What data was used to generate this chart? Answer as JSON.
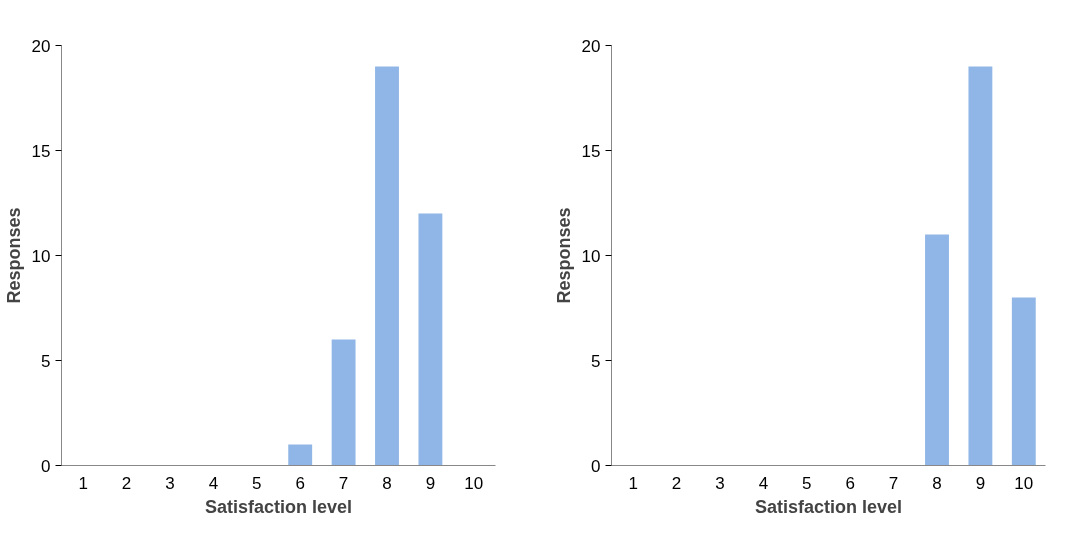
{
  "chart_data": [
    {
      "type": "bar",
      "xlabel": "Satisfaction level",
      "ylabel": "Responses",
      "categories": [
        "1",
        "2",
        "3",
        "4",
        "5",
        "6",
        "7",
        "8",
        "9",
        "10"
      ],
      "values": [
        0,
        0,
        0,
        0,
        0,
        1,
        6,
        19,
        12,
        0
      ],
      "color": "#8fb6e6",
      "ylim": [
        0,
        20
      ],
      "yticks": [
        0,
        5,
        10,
        15,
        20
      ],
      "grid": false
    },
    {
      "type": "bar",
      "xlabel": "Satisfaction level",
      "ylabel": "Responses",
      "categories": [
        "1",
        "2",
        "3",
        "4",
        "5",
        "6",
        "7",
        "8",
        "9",
        "10"
      ],
      "values": [
        0,
        0,
        0,
        0,
        0,
        0,
        0,
        11,
        19,
        8
      ],
      "color": "#8fb6e6",
      "ylim": [
        0,
        20
      ],
      "yticks": [
        0,
        5,
        10,
        15,
        20
      ],
      "grid": false
    }
  ]
}
